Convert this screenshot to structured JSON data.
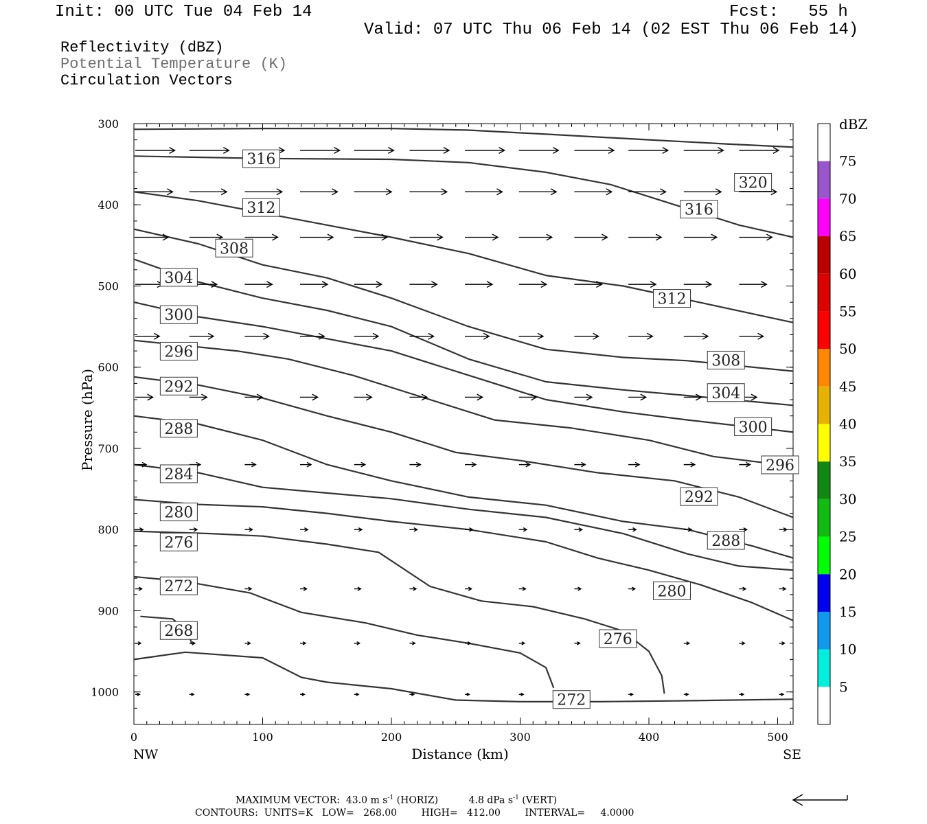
{
  "header": {
    "init": "Init: 00 UTC Tue 04 Feb 14",
    "fcst": "Fcst:   55 h",
    "valid": "Valid: 07 UTC Thu 06 Feb 14 (02 EST Thu 06 Feb 14)"
  },
  "fields": {
    "reflectivity": "Reflectivity (dBZ)",
    "theta": "Potential Temperature (K)",
    "vectors": "Circulation Vectors"
  },
  "chart_data": {
    "type": "contour cross-section",
    "xlabel": "Distance (km)",
    "ylabel": "Pressure (hPa)",
    "xlim": [
      0,
      512
    ],
    "ylim": [
      300,
      1040
    ],
    "x_ticks": [
      "0",
      "100",
      "200",
      "300",
      "400",
      "500"
    ],
    "y_ticks": [
      "300",
      "400",
      "500",
      "600",
      "700",
      "800",
      "900",
      "1000"
    ],
    "x_end_labels": [
      "NW",
      "SE"
    ],
    "colorbar": {
      "unit": "dBZ",
      "labels": [
        "75",
        "70",
        "65",
        "60",
        "55",
        "50",
        "45",
        "40",
        "35",
        "30",
        "25",
        "20",
        "15",
        "10",
        "5"
      ],
      "colors": [
        "#9955cc",
        "#ff00ff",
        "#bb0000",
        "#dd0000",
        "#ff0000",
        "#ff8800",
        "#e6b400",
        "#ffff00",
        "#118811",
        "#11bb11",
        "#00ff00",
        "#0000ee",
        "#1199ee",
        "#00eedd",
        "#ffffff"
      ]
    },
    "theta_contours": [
      {
        "label": "320",
        "points": [
          [
            0,
            307
          ],
          [
            100,
            306
          ],
          [
            200,
            306
          ],
          [
            260,
            308
          ],
          [
            320,
            313
          ],
          [
            400,
            320
          ],
          [
            460,
            325
          ],
          [
            512,
            329
          ]
        ]
      },
      {
        "label": "316",
        "points": [
          [
            0,
            340
          ],
          [
            100,
            343
          ],
          [
            200,
            344
          ],
          [
            260,
            348
          ],
          [
            320,
            360
          ],
          [
            370,
            375
          ],
          [
            420,
            400
          ],
          [
            470,
            425
          ],
          [
            512,
            440
          ]
        ]
      },
      {
        "label": "312",
        "points": [
          [
            0,
            384
          ],
          [
            50,
            395
          ],
          [
            100,
            410
          ],
          [
            150,
            425
          ],
          [
            200,
            440
          ],
          [
            260,
            460
          ],
          [
            320,
            487
          ],
          [
            380,
            500
          ],
          [
            430,
            517
          ],
          [
            512,
            545
          ]
        ]
      },
      {
        "label": "308",
        "points": [
          [
            0,
            430
          ],
          [
            50,
            448
          ],
          [
            100,
            474
          ],
          [
            150,
            490
          ],
          [
            200,
            515
          ],
          [
            260,
            550
          ],
          [
            320,
            578
          ],
          [
            380,
            588
          ],
          [
            430,
            592
          ],
          [
            512,
            605
          ]
        ]
      },
      {
        "label": "304",
        "points": [
          [
            0,
            467
          ],
          [
            50,
            495
          ],
          [
            100,
            515
          ],
          [
            150,
            530
          ],
          [
            200,
            550
          ],
          [
            260,
            590
          ],
          [
            320,
            618
          ],
          [
            380,
            628
          ],
          [
            430,
            635
          ],
          [
            512,
            647
          ]
        ]
      },
      {
        "label": "300",
        "points": [
          [
            0,
            520
          ],
          [
            50,
            538
          ],
          [
            100,
            550
          ],
          [
            150,
            565
          ],
          [
            200,
            580
          ],
          [
            260,
            610
          ],
          [
            320,
            640
          ],
          [
            380,
            655
          ],
          [
            430,
            665
          ],
          [
            512,
            680
          ]
        ]
      },
      {
        "label": "296",
        "points": [
          [
            0,
            567
          ],
          [
            80,
            580
          ],
          [
            120,
            590
          ],
          [
            170,
            610
          ],
          [
            230,
            640
          ],
          [
            280,
            665
          ],
          [
            340,
            675
          ],
          [
            400,
            690
          ],
          [
            450,
            710
          ],
          [
            512,
            722
          ]
        ]
      },
      {
        "label": "292",
        "points": [
          [
            0,
            612
          ],
          [
            50,
            622
          ],
          [
            100,
            638
          ],
          [
            150,
            660
          ],
          [
            200,
            680
          ],
          [
            250,
            705
          ],
          [
            300,
            715
          ],
          [
            360,
            730
          ],
          [
            420,
            740
          ],
          [
            470,
            760
          ],
          [
            512,
            785
          ]
        ]
      },
      {
        "label": "288",
        "points": [
          [
            0,
            660
          ],
          [
            50,
            670
          ],
          [
            100,
            690
          ],
          [
            150,
            720
          ],
          [
            200,
            740
          ],
          [
            260,
            760
          ],
          [
            320,
            770
          ],
          [
            380,
            790
          ],
          [
            430,
            800
          ],
          [
            480,
            820
          ],
          [
            512,
            835
          ]
        ]
      },
      {
        "label": "284",
        "points": [
          [
            0,
            720
          ],
          [
            50,
            730
          ],
          [
            100,
            748
          ],
          [
            150,
            755
          ],
          [
            200,
            762
          ],
          [
            260,
            775
          ],
          [
            320,
            785
          ],
          [
            380,
            805
          ],
          [
            430,
            830
          ],
          [
            470,
            845
          ],
          [
            512,
            850
          ]
        ]
      },
      {
        "label": "280",
        "points": [
          [
            0,
            763
          ],
          [
            50,
            769
          ],
          [
            100,
            772
          ],
          [
            150,
            780
          ],
          [
            200,
            790
          ],
          [
            260,
            800
          ],
          [
            320,
            815
          ],
          [
            360,
            835
          ],
          [
            400,
            850
          ],
          [
            440,
            868
          ],
          [
            480,
            890
          ],
          [
            512,
            912
          ]
        ]
      },
      {
        "label": "276",
        "points": [
          [
            0,
            802
          ],
          [
            60,
            805
          ],
          [
            100,
            808
          ],
          [
            150,
            818
          ],
          [
            190,
            828
          ],
          [
            230,
            870
          ],
          [
            270,
            888
          ],
          [
            310,
            895
          ],
          [
            350,
            910
          ],
          [
            380,
            925
          ],
          [
            400,
            950
          ],
          [
            410,
            980
          ],
          [
            412,
            1002
          ]
        ]
      },
      {
        "label": "272",
        "points": [
          [
            0,
            858
          ],
          [
            40,
            864
          ],
          [
            90,
            878
          ],
          [
            130,
            902
          ],
          [
            180,
            915
          ],
          [
            220,
            930
          ],
          [
            260,
            940
          ],
          [
            300,
            952
          ],
          [
            320,
            970
          ],
          [
            326,
            995
          ]
        ]
      },
      {
        "label": "268",
        "points": [
          [
            5,
            907
          ],
          [
            30,
            910
          ],
          [
            42,
            926
          ],
          [
            45,
            941
          ]
        ]
      },
      {
        "label": "272",
        "points": [
          [
            0,
            960
          ],
          [
            40,
            951
          ],
          [
            100,
            958
          ],
          [
            130,
            982
          ],
          [
            150,
            988
          ],
          [
            200,
            996
          ],
          [
            250,
            1010
          ],
          [
            300,
            1012
          ],
          [
            360,
            1012
          ],
          [
            420,
            1011
          ],
          [
            512,
            1009
          ]
        ]
      }
    ],
    "contour_labels": [
      {
        "text": "316",
        "x": 85,
        "y": 345
      },
      {
        "text": "320",
        "x": 467,
        "y": 374
      },
      {
        "text": "312",
        "x": 85,
        "y": 405
      },
      {
        "text": "316",
        "x": 425,
        "y": 407
      },
      {
        "text": "308",
        "x": 64,
        "y": 455
      },
      {
        "text": "304",
        "x": 21,
        "y": 491
      },
      {
        "text": "312",
        "x": 404,
        "y": 517
      },
      {
        "text": "300",
        "x": 21,
        "y": 537
      },
      {
        "text": "296",
        "x": 21,
        "y": 582
      },
      {
        "text": "308",
        "x": 446,
        "y": 593
      },
      {
        "text": "292",
        "x": 21,
        "y": 625
      },
      {
        "text": "304",
        "x": 446,
        "y": 633
      },
      {
        "text": "288",
        "x": 21,
        "y": 677
      },
      {
        "text": "300",
        "x": 467,
        "y": 675
      },
      {
        "text": "296",
        "x": 488,
        "y": 722
      },
      {
        "text": "284",
        "x": 21,
        "y": 733
      },
      {
        "text": "292",
        "x": 425,
        "y": 761
      },
      {
        "text": "280",
        "x": 21,
        "y": 780
      },
      {
        "text": "276",
        "x": 21,
        "y": 817
      },
      {
        "text": "288",
        "x": 446,
        "y": 815
      },
      {
        "text": "272",
        "x": 21,
        "y": 871
      },
      {
        "text": "280",
        "x": 404,
        "y": 877
      },
      {
        "text": "268",
        "x": 21,
        "y": 926
      },
      {
        "text": "276",
        "x": 362,
        "y": 936
      },
      {
        "text": "272",
        "x": 326,
        "y": 1011
      }
    ],
    "vector_rows": [
      {
        "p": 333,
        "xs": [
          0,
          42,
          85,
          128,
          170,
          213,
          256,
          298,
          341,
          383,
          426,
          469,
          500
        ],
        "len": 36
      },
      {
        "p": 384,
        "xs": [
          0,
          42,
          85,
          128,
          170,
          213,
          256,
          298,
          341,
          383,
          426,
          469,
          500
        ],
        "len": 34
      },
      {
        "p": 440,
        "xs": [
          0,
          42,
          85,
          128,
          170,
          213,
          256,
          298,
          341,
          383,
          426,
          469,
          500
        ],
        "len": 30
      },
      {
        "p": 498,
        "xs": [
          0,
          42,
          85,
          128,
          170,
          213,
          256,
          298,
          341,
          383,
          426,
          469,
          500
        ],
        "len": 25
      },
      {
        "p": 562,
        "xs": [
          0,
          42,
          85,
          128,
          170,
          213,
          256,
          298,
          341,
          383,
          426,
          469,
          500
        ],
        "len": 22
      },
      {
        "p": 637,
        "xs": [
          0,
          42,
          85,
          128,
          170,
          213,
          256,
          298,
          341,
          383,
          426,
          469,
          500
        ],
        "len": 16
      },
      {
        "p": 720,
        "xs": [
          0,
          42,
          85,
          128,
          170,
          213,
          256,
          298,
          341,
          383,
          426,
          469,
          500
        ],
        "len": 10
      },
      {
        "p": 800,
        "xs": [
          0,
          42,
          85,
          128,
          170,
          213,
          256,
          298,
          341,
          383,
          426,
          469,
          500
        ],
        "len": 7
      },
      {
        "p": 873,
        "xs": [
          0,
          42,
          85,
          128,
          170,
          213,
          256,
          298,
          341,
          383,
          426,
          469,
          500
        ],
        "len": 6
      },
      {
        "p": 940,
        "xs": [
          0,
          42,
          85,
          128,
          170,
          213,
          256,
          298,
          341,
          383,
          426,
          469,
          500
        ],
        "len": 5
      },
      {
        "p": 1003,
        "xs": [
          0,
          42,
          85,
          128,
          170,
          213,
          256,
          298,
          341,
          383,
          426,
          469,
          500
        ],
        "len": 4
      }
    ]
  },
  "footer": {
    "max_vector": "MAXIMUM VECTOR:  43.0 m s",
    "max_vector_exp": "-1",
    "max_vector_horiz": "(HORIZ)",
    "max_vector_vert": "4.8 dPa s",
    "max_vector_vert_exp": "-1",
    "max_vector_vert_tail": "(VERT)",
    "contours": "CONTOURS:  UNITS=K   LOW=   268.00        HIGH=   412.00        INTERVAL=     4.0000"
  }
}
